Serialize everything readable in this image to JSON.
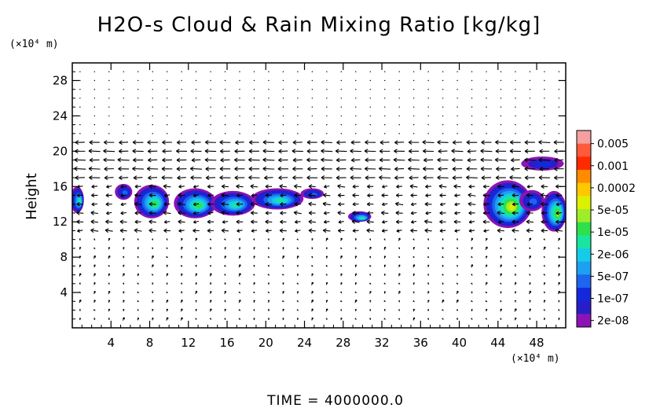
{
  "chart_data": {
    "type": "heatmap",
    "title": "H2O-s Cloud & Rain Mixing Ratio [kg/kg]",
    "ylabel": "Height",
    "x_unit": "(×10⁴ m)",
    "y_unit": "(×10⁴ m)",
    "xlim": [
      0,
      51
    ],
    "ylim": [
      0,
      30
    ],
    "x_ticks": [
      "4",
      "8",
      "12",
      "16",
      "20",
      "24",
      "28",
      "32",
      "36",
      "40",
      "44",
      "48"
    ],
    "x_tick_values": [
      4,
      8,
      12,
      16,
      20,
      24,
      28,
      32,
      36,
      40,
      44,
      48
    ],
    "y_ticks": [
      "4",
      "8",
      "12",
      "16",
      "20",
      "24",
      "28"
    ],
    "y_tick_values": [
      4,
      8,
      12,
      16,
      20,
      24,
      28
    ],
    "colorbar": {
      "labels": [
        "0.005",
        "0.001",
        "0.0002",
        "5e-05",
        "1e-05",
        "2e-06",
        "5e-07",
        "1e-07",
        "2e-08"
      ],
      "colors": [
        "#f4a0a0",
        "#ff5a3c",
        "#ff2a00",
        "#ff8c00",
        "#ffc800",
        "#dcf000",
        "#a0ec28",
        "#2ee04a",
        "#18e6a0",
        "#14cce8",
        "#1ea0f0",
        "#1e64ee",
        "#1428dc",
        "#281ec8",
        "#8c14b4"
      ]
    },
    "footer": "TIME = 4000000.0",
    "cloud_regions": [
      {
        "x": 0.5,
        "y": 14.5,
        "rx": 0.7,
        "ry": 1.5,
        "level": 6
      },
      {
        "x": 5.3,
        "y": 15.4,
        "rx": 0.9,
        "ry": 0.9,
        "level": 3
      },
      {
        "x": 8.2,
        "y": 14.3,
        "rx": 1.8,
        "ry": 1.9,
        "level": 7
      },
      {
        "x": 12.7,
        "y": 14.1,
        "rx": 2.2,
        "ry": 1.7,
        "level": 7
      },
      {
        "x": 16.6,
        "y": 14.1,
        "rx": 2.3,
        "ry": 1.4,
        "level": 6
      },
      {
        "x": 21.2,
        "y": 14.6,
        "rx": 2.7,
        "ry": 1.2,
        "level": 6
      },
      {
        "x": 24.8,
        "y": 15.2,
        "rx": 1.2,
        "ry": 0.6,
        "level": 3
      },
      {
        "x": 29.7,
        "y": 12.6,
        "rx": 1.2,
        "ry": 0.6,
        "level": 6
      },
      {
        "x": 45.0,
        "y": 14.0,
        "rx": 2.5,
        "ry": 2.7,
        "level": 9
      },
      {
        "x": 47.5,
        "y": 14.4,
        "rx": 1.3,
        "ry": 1.2,
        "level": 3
      },
      {
        "x": 49.8,
        "y": 13.2,
        "rx": 1.3,
        "ry": 2.3,
        "level": 8
      },
      {
        "x": 48.6,
        "y": 18.6,
        "rx": 2.2,
        "ry": 0.8,
        "level": 2
      }
    ]
  }
}
